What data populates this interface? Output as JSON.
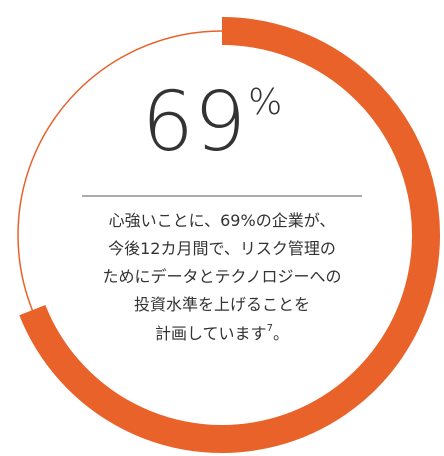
{
  "chart_data": {
    "type": "progress_ring",
    "value": 69,
    "max": 100,
    "unit": "%",
    "color": "#e8622a",
    "caption": [
      "心強いことに、69%の企業が、",
      "今後12カ月間で、リスク管理の",
      "ためにデータとテクノロジーへの",
      "投資水準を上げることを"
    ],
    "caption_last": "計画しています",
    "footnote": "7",
    "caption_end": "。"
  }
}
